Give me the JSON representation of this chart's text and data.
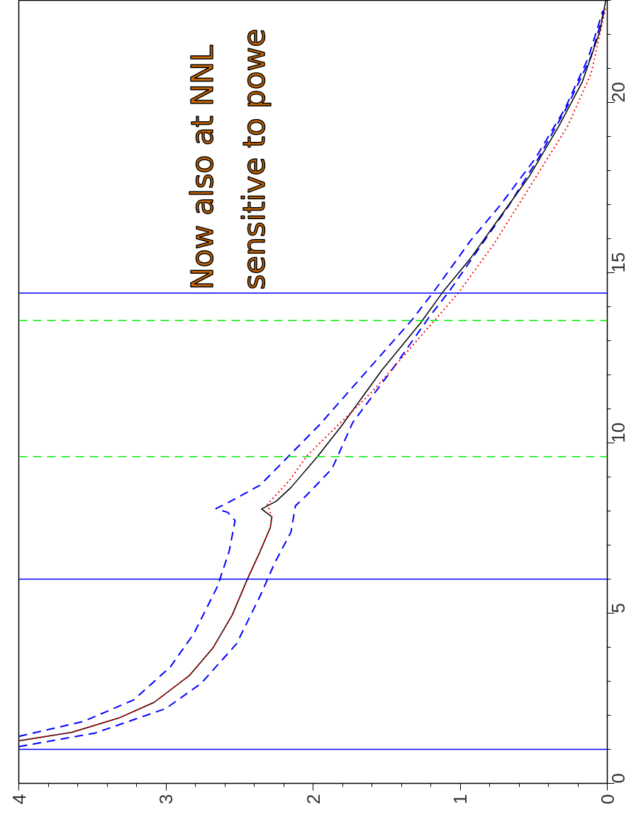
{
  "chart_data": {
    "type": "line",
    "xlim": [
      4,
      0
    ],
    "xticks": [
      4,
      3,
      2,
      1,
      0
    ],
    "ylim": [
      0,
      23
    ],
    "yticks": [
      0,
      5,
      10,
      15,
      20
    ],
    "grid": false,
    "marker": "none",
    "series": [
      {
        "color": "#0000ff",
        "line_style": "dashed",
        "x": [
          4.0,
          3.56,
          3.22,
          2.97,
          2.81,
          2.65,
          2.57,
          2.53,
          2.58,
          2.66,
          2.58,
          2.36,
          2.2,
          1.95,
          1.6,
          1.33,
          1.17,
          0.93,
          0.73,
          0.49,
          0.29,
          0.13,
          0.03
        ],
        "values": [
          1.38,
          1.82,
          2.45,
          3.42,
          4.4,
          5.78,
          6.82,
          7.72,
          7.96,
          8.07,
          8.24,
          8.76,
          9.46,
          10.56,
          12.28,
          13.6,
          14.5,
          15.94,
          16.97,
          18.35,
          19.8,
          21.3,
          22.7
        ]
      },
      {
        "color": "#0000ff",
        "line_style": "dashed",
        "x": [
          4.0,
          3.48,
          3.0,
          2.76,
          2.52,
          2.36,
          2.26,
          2.15,
          2.12,
          2.04,
          1.87,
          1.73,
          1.45,
          1.21,
          1.07,
          0.89,
          0.67,
          0.47,
          0.27,
          0.11,
          0.02
        ],
        "values": [
          1.08,
          1.48,
          2.2,
          2.94,
          4.1,
          5.5,
          6.48,
          7.38,
          8.15,
          8.48,
          9.25,
          10.6,
          12.23,
          13.7,
          14.48,
          15.6,
          16.97,
          18.35,
          19.9,
          21.35,
          22.7
        ]
      },
      {
        "color": "#000000",
        "line_style": "solid",
        "x": [
          4.0,
          3.64,
          3.32,
          3.08,
          2.84,
          2.68,
          2.55,
          2.44,
          2.36,
          2.29,
          2.28,
          2.35,
          2.25,
          2.15,
          1.97,
          1.81,
          1.53,
          1.27,
          1.12,
          0.93,
          0.73,
          0.53,
          0.33,
          0.17,
          0.05,
          0.01
        ],
        "values": [
          1.25,
          1.5,
          1.92,
          2.38,
          3.17,
          3.98,
          4.94,
          6.06,
          6.81,
          7.52,
          7.83,
          8.06,
          8.29,
          8.69,
          9.6,
          10.48,
          12.15,
          13.52,
          14.42,
          15.42,
          16.63,
          17.83,
          19.3,
          20.6,
          22.1,
          23.0
        ]
      },
      {
        "color": "#ff0000",
        "line_style": "dotted",
        "x": [
          4.0,
          3.64,
          3.32,
          3.08,
          2.84,
          2.68,
          2.55,
          2.44,
          2.36,
          2.29,
          2.28,
          2.31,
          2.16,
          2.04,
          1.59,
          1.19,
          1.01,
          0.77,
          0.53,
          0.27,
          0.11,
          0.01
        ],
        "values": [
          1.25,
          1.5,
          1.92,
          2.38,
          3.17,
          3.98,
          4.94,
          6.06,
          6.81,
          7.52,
          7.83,
          8.2,
          8.9,
          9.63,
          11.54,
          13.52,
          14.42,
          15.85,
          17.5,
          19.3,
          20.85,
          22.8
        ]
      }
    ],
    "ref_lines": [
      {
        "axis": "y",
        "value": 1.0,
        "color": "#0000ff",
        "line_style": "solid"
      },
      {
        "axis": "y",
        "value": 6.0,
        "color": "#0000ff",
        "line_style": "solid"
      },
      {
        "axis": "y",
        "value": 14.4,
        "color": "#0000ff",
        "line_style": "solid"
      },
      {
        "axis": "y",
        "value": 9.6,
        "color": "#00ee00",
        "line_style": "dashed"
      },
      {
        "axis": "y",
        "value": 13.6,
        "color": "#00ee00",
        "line_style": "dashed"
      }
    ],
    "annotations": [
      "Now also at NNL",
      "sensitive to powe"
    ]
  }
}
